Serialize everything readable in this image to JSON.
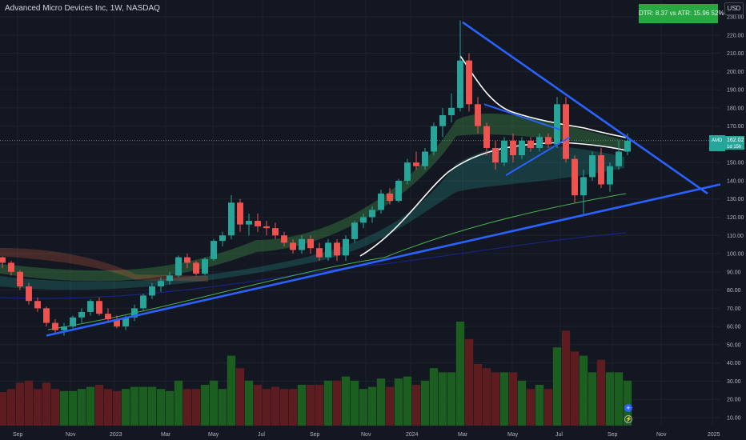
{
  "header": {
    "title": "Advanced Micro Devices Inc, 1W, NASDAQ",
    "currency": "USD",
    "dtr_box": "DTR: 8.37 vs ATR: 15.96 52%"
  },
  "price_tag": {
    "symbol": "AMD",
    "price": "162.02",
    "countdown": "1d 15h"
  },
  "icons": {
    "add": "plus-circle-icon",
    "alert": "lightning-icon"
  },
  "colors": {
    "background": "#131722",
    "up": "#26a69a",
    "down": "#ef5350",
    "trendline": "#2962ff",
    "dtr_box": "#27a843"
  },
  "chart_data": {
    "type": "candlestick",
    "title": "Advanced Micro Devices Inc, 1W, NASDAQ",
    "ylim": [
      0,
      235
    ],
    "yticks": [
      10,
      20,
      30,
      40,
      50,
      60,
      70,
      80,
      90,
      100,
      110,
      120,
      130,
      140,
      150,
      160,
      170,
      180,
      190,
      200,
      210,
      220,
      230
    ],
    "xticks": [
      "Sep",
      "Nov",
      "2023",
      "Mar",
      "May",
      "Jul",
      "Sep",
      "Nov",
      "2024",
      "Mar",
      "May",
      "Jul",
      "Sep",
      "Nov",
      "2025"
    ],
    "last_price": 162.02,
    "candles": [
      [
        98,
        98.5,
        92,
        95
      ],
      [
        95,
        96,
        88,
        90
      ],
      [
        90,
        91,
        80,
        82
      ],
      [
        82,
        84,
        72,
        74
      ],
      [
        74,
        76,
        68,
        70
      ],
      [
        70,
        71,
        60,
        62
      ],
      [
        62,
        64,
        56,
        58
      ],
      [
        58,
        62,
        55,
        60
      ],
      [
        60,
        66,
        59,
        65
      ],
      [
        65,
        70,
        62,
        68
      ],
      [
        68,
        75,
        66,
        74
      ],
      [
        74,
        76,
        66,
        67
      ],
      [
        67,
        70,
        62,
        64
      ],
      [
        64,
        66,
        59,
        60
      ],
      [
        60,
        66,
        58,
        65
      ],
      [
        65,
        72,
        63,
        70
      ],
      [
        70,
        78,
        69,
        77
      ],
      [
        77,
        84,
        75,
        82
      ],
      [
        82,
        87,
        79,
        85
      ],
      [
        85,
        90,
        83,
        88
      ],
      [
        88,
        99,
        87,
        98
      ],
      [
        98,
        100,
        92,
        95
      ],
      [
        95,
        96,
        88,
        89
      ],
      [
        89,
        98,
        88,
        97
      ],
      [
        97,
        108,
        96,
        107
      ],
      [
        107,
        112,
        104,
        110
      ],
      [
        110,
        132,
        108,
        128
      ],
      [
        128,
        130,
        112,
        116
      ],
      [
        116,
        122,
        110,
        118
      ],
      [
        118,
        122,
        112,
        115
      ],
      [
        115,
        118,
        110,
        114
      ],
      [
        114,
        117,
        108,
        110
      ],
      [
        110,
        112,
        104,
        106
      ],
      [
        106,
        108,
        100,
        102
      ],
      [
        102,
        110,
        100,
        108
      ],
      [
        108,
        110,
        100,
        103
      ],
      [
        103,
        106,
        96,
        98
      ],
      [
        98,
        108,
        96,
        106
      ],
      [
        106,
        108,
        96,
        99
      ],
      [
        99,
        110,
        96,
        108
      ],
      [
        108,
        118,
        106,
        117
      ],
      [
        117,
        122,
        114,
        120
      ],
      [
        120,
        126,
        117,
        124
      ],
      [
        124,
        135,
        122,
        133
      ],
      [
        133,
        136,
        127,
        129
      ],
      [
        129,
        141,
        128,
        140
      ],
      [
        140,
        152,
        138,
        150
      ],
      [
        150,
        156,
        146,
        148
      ],
      [
        148,
        158,
        146,
        156
      ],
      [
        156,
        172,
        154,
        170
      ],
      [
        170,
        180,
        164,
        176
      ],
      [
        176,
        188,
        172,
        180
      ],
      [
        180,
        228,
        178,
        206
      ],
      [
        206,
        210,
        178,
        182
      ],
      [
        182,
        186,
        166,
        170
      ],
      [
        170,
        172,
        154,
        158
      ],
      [
        158,
        162,
        146,
        150
      ],
      [
        150,
        164,
        148,
        162
      ],
      [
        162,
        166,
        150,
        154
      ],
      [
        154,
        164,
        152,
        162
      ],
      [
        162,
        164,
        156,
        158
      ],
      [
        158,
        166,
        156,
        164
      ],
      [
        164,
        166,
        158,
        160
      ],
      [
        160,
        186,
        158,
        182
      ],
      [
        182,
        186,
        150,
        152
      ],
      [
        152,
        154,
        128,
        132
      ],
      [
        132,
        146,
        122,
        142
      ],
      [
        142,
        156,
        140,
        154
      ],
      [
        154,
        158,
        136,
        138
      ],
      [
        138,
        150,
        134,
        148
      ],
      [
        148,
        162,
        146,
        156
      ],
      [
        156,
        166,
        154,
        162
      ]
    ],
    "trendlines": [
      {
        "name": "",
        "from": [
          "2022-10",
          55
        ],
        "to": [
          "2025-01",
          138
        ]
      },
      {
        "name": "",
        "from": [
          "2024-03",
          227
        ],
        "to": [
          "2024-12",
          133
        ]
      }
    ]
  }
}
